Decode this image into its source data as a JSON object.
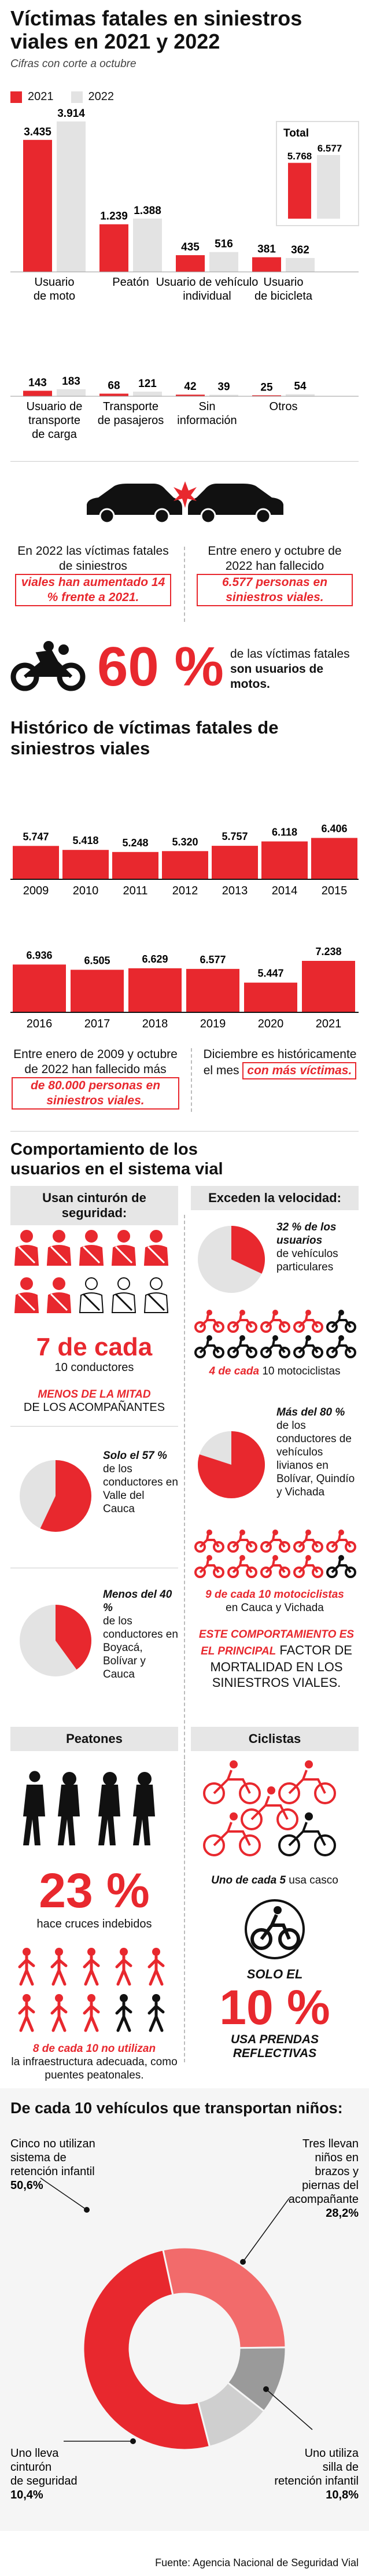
{
  "title": "Víctimas fatales en siniestros viales en 2021 y 2022",
  "subtitle": "Cifras con corte a octubre",
  "legend": {
    "a": "2021",
    "b": "2022",
    "color_a": "#e8282e",
    "color_b": "#e3e3e3"
  },
  "chart_data": [
    {
      "type": "bar",
      "categories": [
        "Usuario de moto",
        "Peatón",
        "Usuario de vehículo individual",
        "Usuario de bicicleta",
        "Usuario de transporte de carga",
        "Transporte de pasajeros",
        "Sin información",
        "Otros"
      ],
      "series": [
        {
          "name": "2021",
          "values": [
            3435,
            1239,
            435,
            381,
            143,
            68,
            42,
            25
          ]
        },
        {
          "name": "2022",
          "values": [
            3914,
            1388,
            516,
            362,
            183,
            121,
            39,
            54
          ]
        }
      ],
      "labels_2021": [
        "3.435",
        "1.239",
        "435",
        "381",
        "143",
        "68",
        "42",
        "25"
      ],
      "labels_2022": [
        "3.914",
        "1.388",
        "516",
        "362",
        "183",
        "121",
        "39",
        "54"
      ],
      "total": {
        "label": "Total",
        "v2021": 5768,
        "v2022": 6577,
        "l2021": "5.768",
        "l2022": "6.577"
      }
    },
    {
      "type": "bar",
      "title": "Histórico de víctimas fatales de siniestros viales",
      "categories": [
        "2009",
        "2010",
        "2011",
        "2012",
        "2013",
        "2014",
        "2015",
        "2016",
        "2017",
        "2018",
        "2019",
        "2020",
        "2021"
      ],
      "values": [
        5747,
        5418,
        5248,
        5320,
        5757,
        6118,
        6406,
        6936,
        6505,
        6629,
        6577,
        5447,
        7238
      ],
      "labels": [
        "5.747",
        "5.418",
        "5.248",
        "5.320",
        "5.757",
        "6.118",
        "6.406",
        "6.936",
        "6.505",
        "6.629",
        "6.577",
        "5.447",
        "7.238"
      ]
    },
    {
      "type": "pie",
      "title": "De cada 10 vehículos que transportan niños:",
      "slices": [
        {
          "label": "Cinco no utilizan sistema de retención infantil",
          "value": 50.6,
          "pct": "50,6%",
          "color": "#e8282e"
        },
        {
          "label": "Tres llevan niños en brazos y piernas del acompañante",
          "value": 28.2,
          "pct": "28,2%",
          "color": "#f26b6b"
        },
        {
          "label": "Uno utiliza silla de retención infantil",
          "value": 10.8,
          "pct": "10,8%",
          "color": "#9a9a9a"
        },
        {
          "label": "Uno lleva cinturón de seguridad",
          "value": 10.4,
          "pct": "10,4%",
          "color": "#cfcfcf"
        }
      ]
    }
  ],
  "facts": {
    "f1_a": "En 2022 las víctimas fatales de siniestros",
    "f1_hl": "viales han aumentado 14 % frente a 2021.",
    "f2_a": "Entre enero y octubre de 2022 han fallecido",
    "f2_hl": "6.577 personas en siniestros viales.",
    "moto_pct": "60 %",
    "moto_a": "de las víctimas fatales",
    "moto_b": "son usuarios de motos.",
    "h1_a": "Entre enero de 2009 y octubre de 2022 han fallecido más",
    "h1_hl": "de 80.000 personas en siniestros viales.",
    "h2_a": "Diciembre es históricamente el mes",
    "h2_hl": "con más víctimas."
  },
  "behavior": {
    "title": "Comportamiento de los usuarios en el sistema vial",
    "seatbelt_tag": "Usan cinturón de seguridad:",
    "speed_tag": "Exceden la velocidad:",
    "seven": "7 de cada",
    "seven_b": "10 conductores",
    "menos_a": "MENOS DE LA MITAD",
    "menos_b": "DE LOS ACOMPAÑANTES",
    "pie57_a": "Solo el 57 %",
    "pie57_b": "de los conductores en Valle del Cauca",
    "pie40_a": "Menos del 40 %",
    "pie40_b": "de los conductores en Boyacá, Bolívar y Cauca",
    "pie32_a": "32 % de los usuarios",
    "pie32_b": "de vehículos particulares",
    "four_a": "4 de cada",
    "four_b": "10 motociclistas",
    "pie80_a": "Más del 80 %",
    "pie80_b": "de los conductores de vehículos livianos en Bolívar, Quindío y Vichada",
    "nine_a": "9 de cada 10 motociclistas",
    "nine_b": "en Cauca y Vichada",
    "este_a": "ESTE COMPORTAMIENTO ES EL PRINCIPAL",
    "este_b": "FACTOR DE MORTALIDAD EN LOS SINIESTROS VIALES."
  },
  "peatones": {
    "tag": "Peatones",
    "pct": "23 %",
    "pct_b": "hace cruces indebidos",
    "eight_a": "8 de cada 10 no utilizan",
    "eight_b": "la infraestructura adecuada, como puentes peatonales."
  },
  "ciclistas": {
    "tag": "Ciclistas",
    "uno_a": "Uno de cada 5",
    "uno_b": "usa casco",
    "solo": "SOLO EL",
    "pct": "10 %",
    "prendas": "USA PRENDAS REFLECTIVAS"
  },
  "source": "Fuente: Agencia Nacional de Seguridad Vial"
}
